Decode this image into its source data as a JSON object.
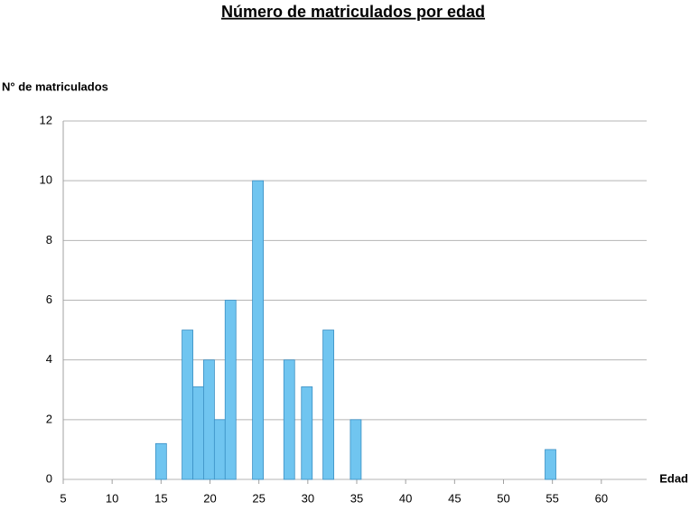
{
  "chart_data": {
    "type": "bar",
    "title": "Número de matriculados por edad",
    "y_label": "N° de matriculados",
    "x_label": "Edad",
    "x": [
      15,
      17.7,
      18.8,
      19.9,
      21,
      22.1,
      24.9,
      28.1,
      29.9,
      32.1,
      34.9,
      54.8
    ],
    "values": [
      1.2,
      5,
      3.1,
      4,
      2,
      6,
      10,
      4,
      3.1,
      5,
      2,
      1
    ],
    "color": "#70c5f0",
    "xlim": [
      5,
      65
    ],
    "xticks": [
      5,
      10,
      15,
      20,
      25,
      30,
      35,
      40,
      45,
      50,
      55,
      60
    ],
    "ylim": [
      0,
      12
    ],
    "yticks": [
      0,
      2,
      4,
      6,
      8,
      10,
      12
    ],
    "grid": true
  }
}
